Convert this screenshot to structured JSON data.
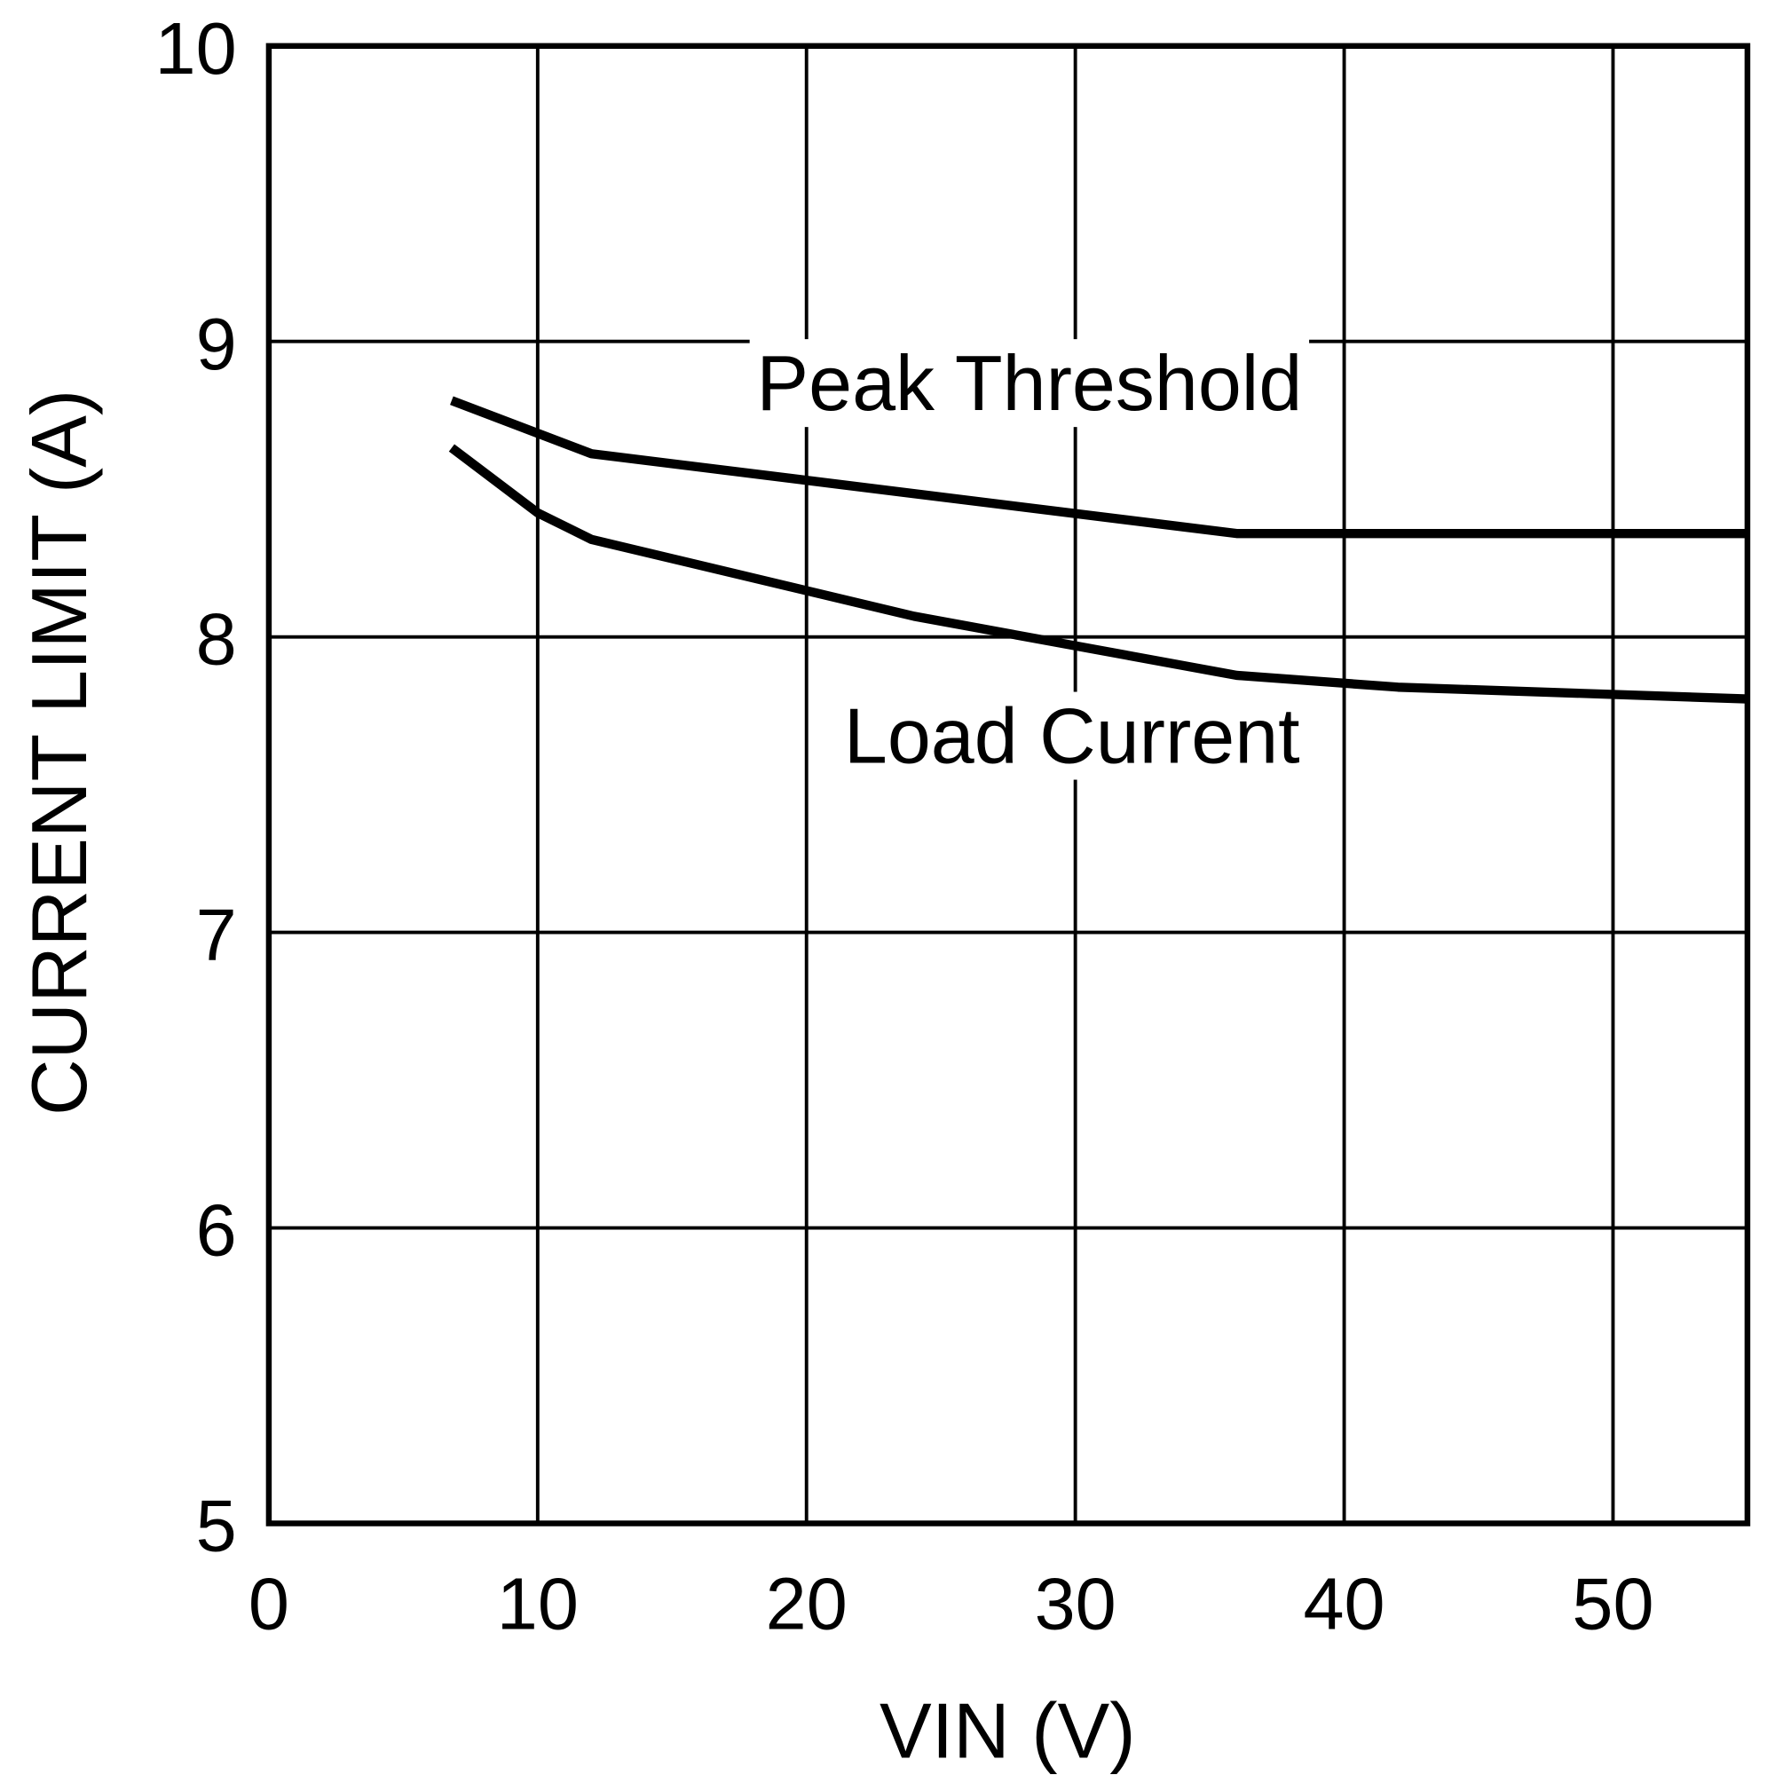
{
  "chart_data": {
    "type": "line",
    "x_label": "VIN (V)",
    "y_label": "CURRENT LIMIT (A)",
    "xlim": [
      0,
      55
    ],
    "xticks": [
      0,
      10,
      20,
      30,
      40,
      50
    ],
    "ylim": [
      5,
      10
    ],
    "yticks": [
      5,
      6,
      7,
      8,
      9,
      10
    ],
    "grid": true,
    "series": [
      {
        "name": "Peak Threshold",
        "color": "#000000",
        "x": [
          6.8,
          12,
          36,
          55
        ],
        "values": [
          8.8,
          8.62,
          8.35,
          8.35
        ]
      },
      {
        "name": "Load Current",
        "color": "#000000",
        "x": [
          6.8,
          10,
          12,
          24,
          36,
          42,
          55
        ],
        "values": [
          8.64,
          8.42,
          8.33,
          8.07,
          7.87,
          7.83,
          7.79
        ]
      }
    ]
  }
}
